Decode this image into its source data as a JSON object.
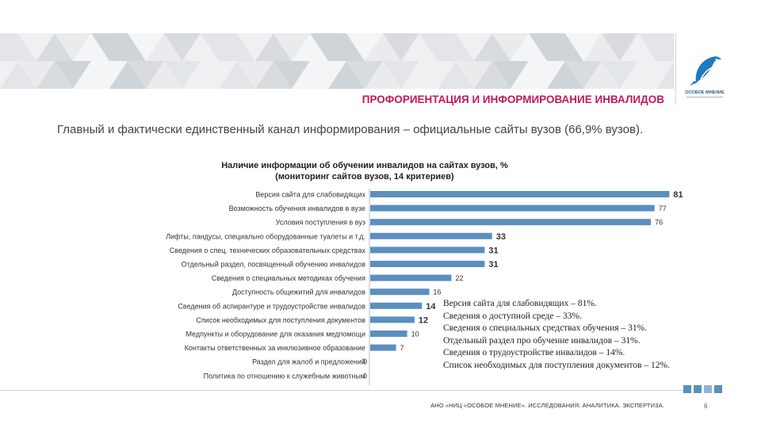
{
  "header": {
    "title": "ПРОФОРИЕНТАЦИЯ И ИНФОРМИРОВАНИЕ ИНВАЛИДОВ",
    "subtitle": "Главный и фактически единственный канал информирования – официальные сайты вузов (66,9% вузов).",
    "logo_text": "ОСОБОЕ МНЕНИЕ",
    "logo_color": "#1e7bbf"
  },
  "chart_data": {
    "type": "bar",
    "orientation": "horizontal",
    "title": "Наличие информации об обучении инвалидов на сайтах вузов, %",
    "subtitle": "(мониторинг сайтов вузов, 14 критериев)",
    "bar_color": "#5b8fbf",
    "xlim": [
      0,
      85
    ],
    "categories": [
      "Версия сайта для слабовидящих",
      "Возможность обучения инвалидов в вузе",
      "Условия поступления в вуз",
      "Лифты, пандусы, специально оборудованные туалеты и т.д.",
      "Сведения о спец. технических образовательных средствах",
      "Отдельный раздел, посвященный обучению инвалидов",
      "Сведения о специальных методиках обучения",
      "Доступность общежитий для инвалидов",
      "Сведения об аспирантуре и трудоустройстве инвалидов",
      "Список необходимых для поступления документов",
      "Медпункты и оборудование для оказания медпомощи",
      "Контакты ответственных за инклюзивное образование",
      "Раздел для жалоб и предложений",
      "Политика по отношению к служебным животным"
    ],
    "values": [
      81,
      77,
      76,
      33,
      31,
      31,
      22,
      16,
      14,
      12,
      10,
      7,
      0,
      0
    ],
    "value_labels": [
      "81",
      "77",
      "76",
      "33",
      "31",
      "31",
      "22",
      "16",
      "14",
      "12",
      "10",
      "7",
      "0",
      "0"
    ],
    "bold_values": [
      true,
      false,
      false,
      true,
      true,
      true,
      false,
      false,
      true,
      true,
      false,
      false,
      false,
      false
    ]
  },
  "note": {
    "lines": [
      "Версия сайта для слабовидящих – 81%.",
      "Сведения о доступной среде – 33%.",
      "Сведения о специальных  средствах обучения – 31%.",
      "Отдельный раздел про обучение инвалидов – 31%.",
      "Сведения о трудоустройстве инвалидов – 14%.",
      "Список необходимых для поступления документов – 12%."
    ]
  },
  "footer": {
    "text": "АНО «НИЦ «ОСОБОЕ МНЕНИЕ». ИССЛЕДОВАНИЯ. АНАЛИТИКА. ЭКСПЕРТИЗА.",
    "page": "6"
  }
}
